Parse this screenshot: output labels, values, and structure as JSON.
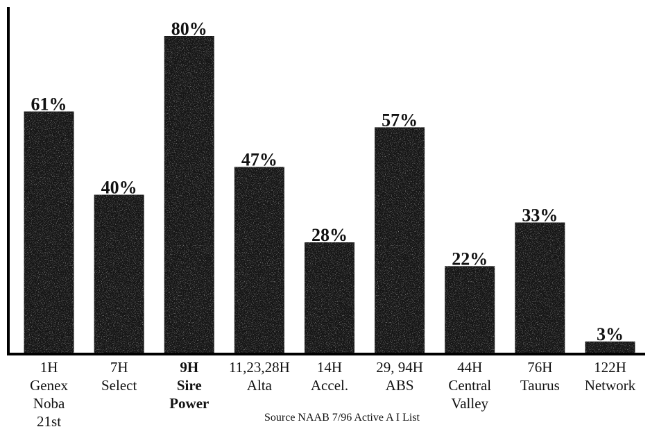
{
  "chart_data": {
    "type": "bar",
    "ylim": [
      0,
      85
    ],
    "grid": false,
    "bar_color": "#151515",
    "categories": [
      [
        "1H",
        "Genex",
        "Noba",
        "21st"
      ],
      [
        "7H",
        "Select"
      ],
      [
        "9H",
        "Sire",
        "Power"
      ],
      [
        "11,23,28H",
        "Alta"
      ],
      [
        "14H",
        "Accel."
      ],
      [
        "29, 94H",
        "ABS"
      ],
      [
        "44H",
        "Central",
        "Valley"
      ],
      [
        "76H",
        "Taurus"
      ],
      [
        "122H",
        "Network"
      ]
    ],
    "highlighted_index": 2,
    "values": [
      61,
      40,
      80,
      47,
      28,
      57,
      22,
      33,
      3
    ],
    "value_labels": [
      "61%",
      "40%",
      "80%",
      "47%",
      "28%",
      "57%",
      "22%",
      "33%",
      "3%"
    ],
    "source": "Source NAAB 7/96 Active A I List"
  }
}
